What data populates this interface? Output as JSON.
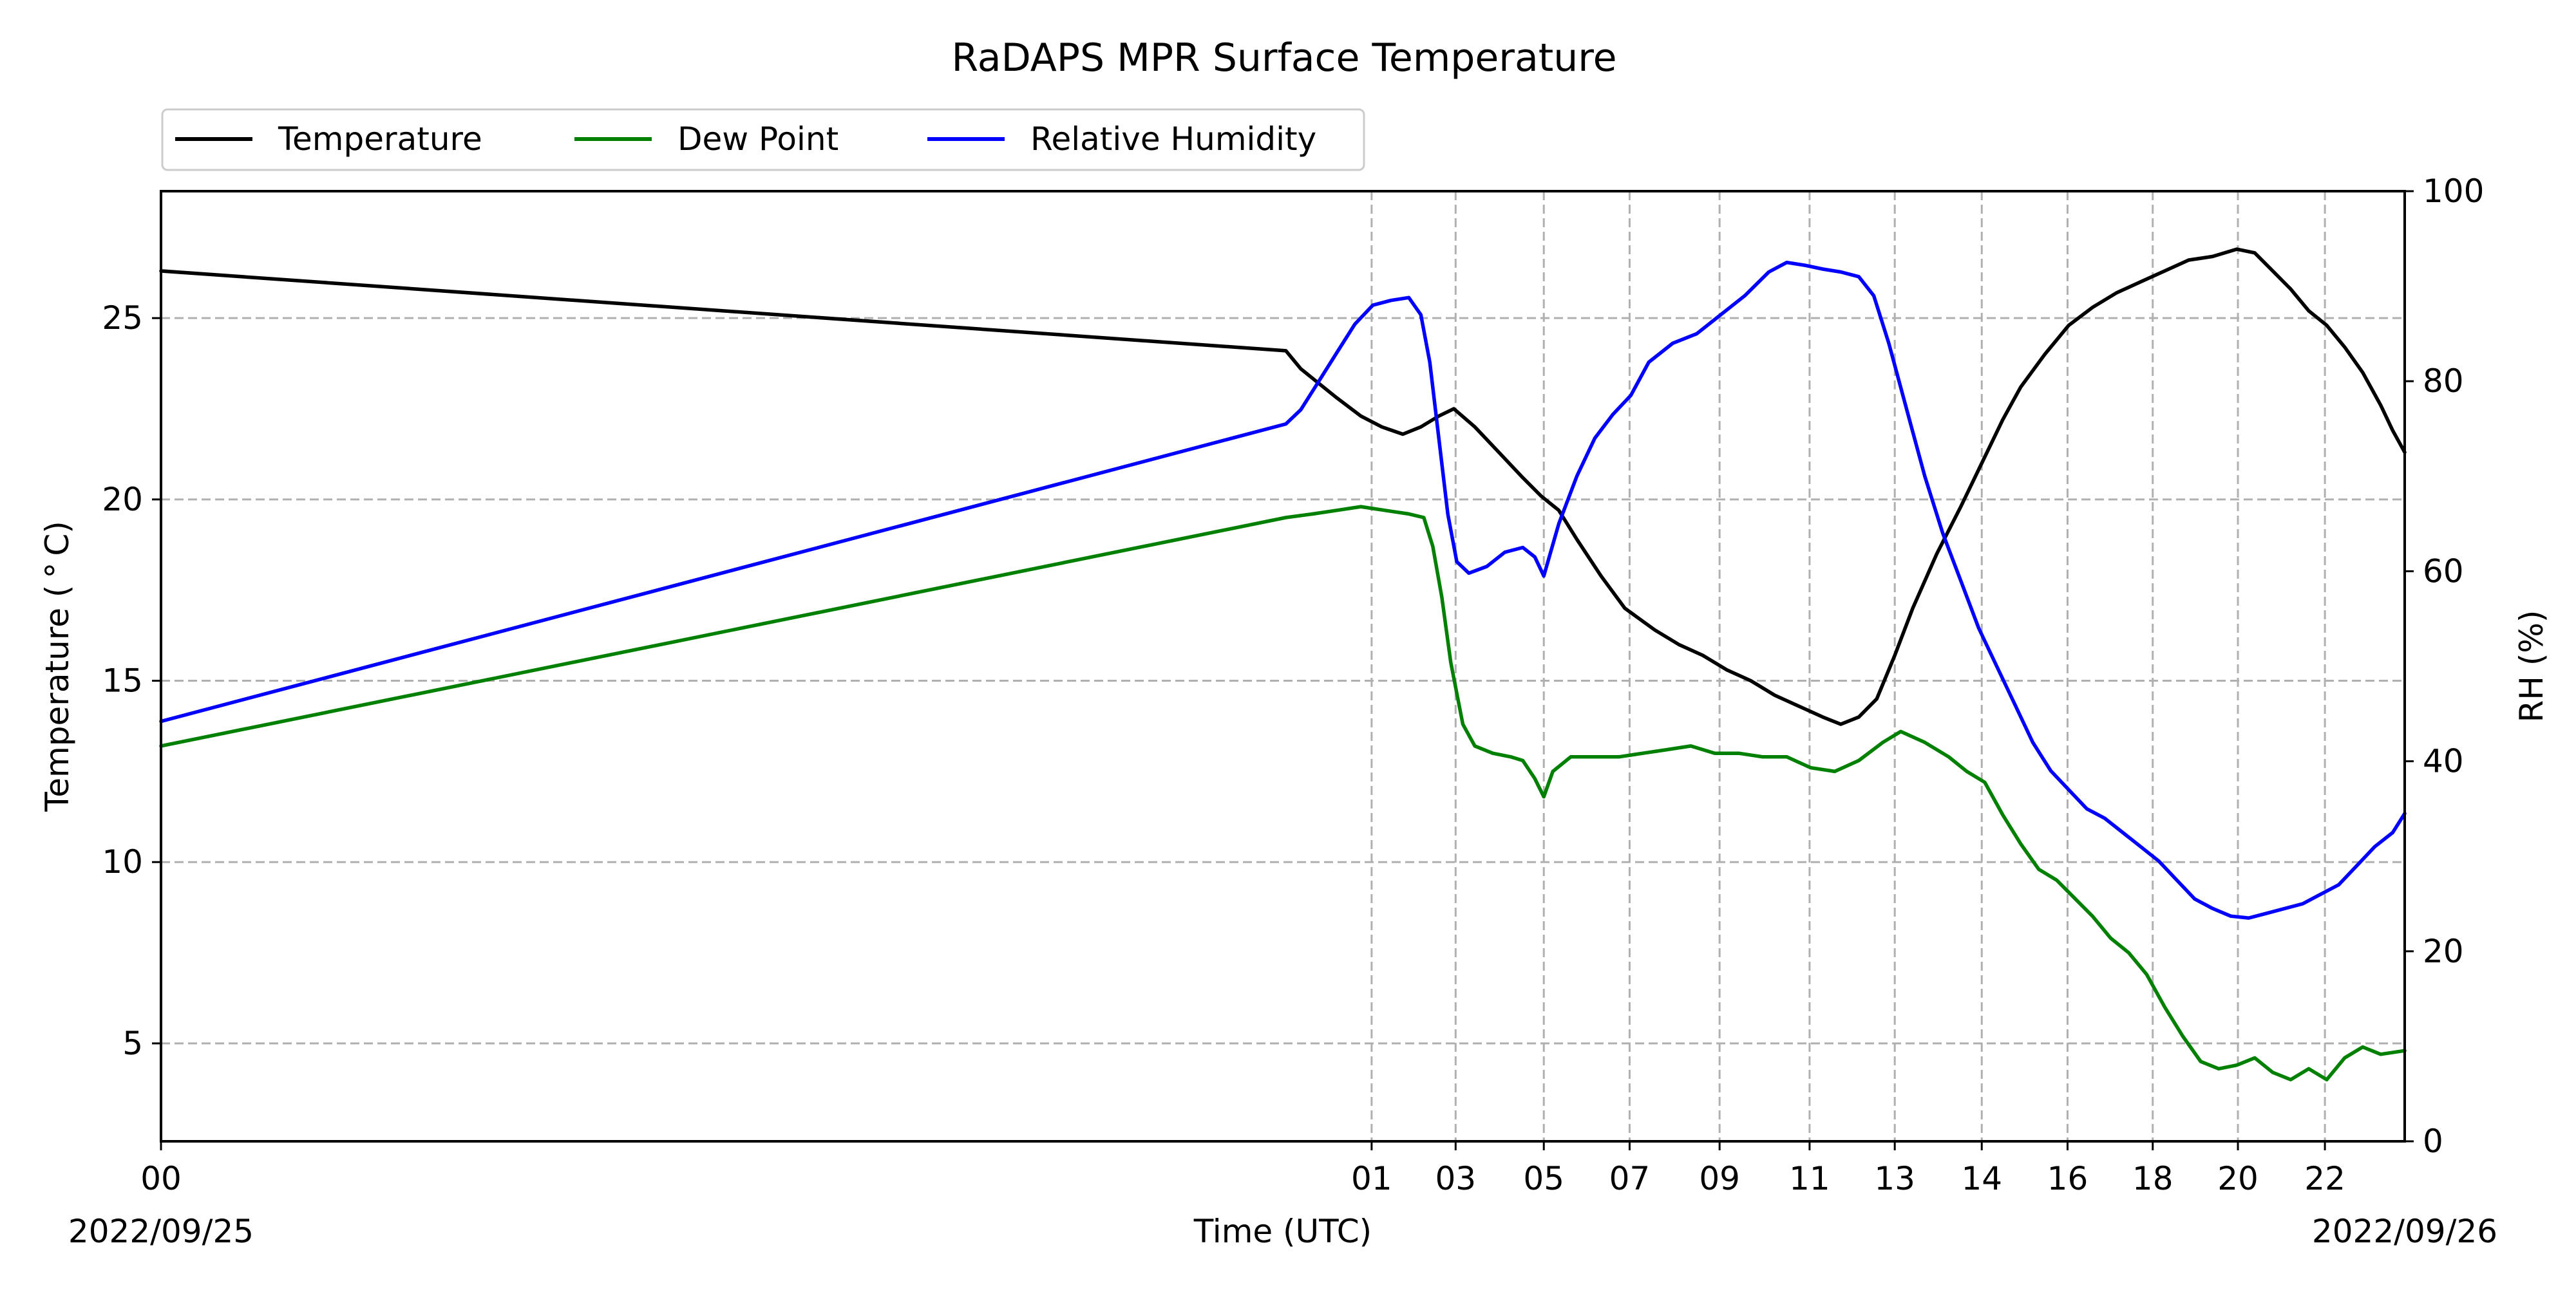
{
  "chart_data": {
    "type": "line",
    "title": "RaDAPS MPR Surface Temperature",
    "xlabel": "Time (UTC)",
    "ylabel": "Temperature ($^\\circ$C)",
    "ylabel_display": "Temperature ( ° C)",
    "y2label": "RH (%)",
    "x_tick_labels": [
      "00",
      "01",
      "03",
      "05",
      "07",
      "09",
      "11",
      "13",
      "14",
      "16",
      "18",
      "20",
      "22"
    ],
    "x_tick_hours": [
      0,
      20.18,
      21.58,
      23.05,
      24.48,
      25.98,
      27.48,
      28.9,
      30.35,
      31.78,
      33.2,
      34.62,
      36.07
    ],
    "x_range_hours": [
      0,
      37.4
    ],
    "date_left": "2022/09/25",
    "date_right": "2022/09/26",
    "ylim": [
      2.3,
      28.5
    ],
    "y_ticks": [
      5,
      10,
      15,
      20,
      25
    ],
    "y2lim": [
      0,
      100
    ],
    "y2_ticks": [
      0,
      20,
      40,
      60,
      80,
      100
    ],
    "grid": true,
    "legend_position": "top-left, above plot",
    "legend": [
      "Temperature",
      "Dew Point",
      "Relative Humidity"
    ],
    "series": [
      {
        "name": "Temperature",
        "color": "#000000",
        "axis": "left",
        "points": [
          [
            0,
            26.3
          ],
          [
            18.75,
            24.1
          ],
          [
            19.0,
            23.6
          ],
          [
            19.3,
            23.2
          ],
          [
            19.6,
            22.8
          ],
          [
            20.0,
            22.3
          ],
          [
            20.35,
            22.0
          ],
          [
            20.7,
            21.8
          ],
          [
            21.0,
            22.0
          ],
          [
            21.3,
            22.3
          ],
          [
            21.55,
            22.5
          ],
          [
            21.9,
            22.0
          ],
          [
            22.3,
            21.3
          ],
          [
            22.7,
            20.6
          ],
          [
            23.0,
            20.1
          ],
          [
            23.3,
            19.7
          ],
          [
            23.6,
            18.9
          ],
          [
            24.0,
            17.9
          ],
          [
            24.4,
            17.0
          ],
          [
            24.9,
            16.4
          ],
          [
            25.3,
            16.0
          ],
          [
            25.7,
            15.7
          ],
          [
            26.1,
            15.3
          ],
          [
            26.5,
            15.0
          ],
          [
            26.9,
            14.6
          ],
          [
            27.3,
            14.3
          ],
          [
            27.7,
            14.0
          ],
          [
            28.0,
            13.8
          ],
          [
            28.3,
            14.0
          ],
          [
            28.6,
            14.5
          ],
          [
            28.9,
            15.7
          ],
          [
            29.2,
            17.0
          ],
          [
            29.6,
            18.5
          ],
          [
            30.0,
            19.8
          ],
          [
            30.35,
            21.0
          ],
          [
            30.7,
            22.2
          ],
          [
            31.0,
            23.1
          ],
          [
            31.4,
            24.0
          ],
          [
            31.8,
            24.8
          ],
          [
            32.2,
            25.3
          ],
          [
            32.6,
            25.7
          ],
          [
            33.0,
            26.0
          ],
          [
            33.4,
            26.3
          ],
          [
            33.8,
            26.6
          ],
          [
            34.2,
            26.7
          ],
          [
            34.6,
            26.9
          ],
          [
            34.9,
            26.8
          ],
          [
            35.2,
            26.3
          ],
          [
            35.5,
            25.8
          ],
          [
            35.8,
            25.2
          ],
          [
            36.1,
            24.8
          ],
          [
            36.4,
            24.2
          ],
          [
            36.7,
            23.5
          ],
          [
            37.0,
            22.6
          ],
          [
            37.2,
            21.9
          ],
          [
            37.4,
            21.3
          ]
        ]
      },
      {
        "name": "Dew Point",
        "color": "#008000",
        "axis": "left",
        "points": [
          [
            0,
            13.2
          ],
          [
            18.75,
            19.5
          ],
          [
            19.2,
            19.6
          ],
          [
            19.6,
            19.7
          ],
          [
            20.0,
            19.8
          ],
          [
            20.4,
            19.7
          ],
          [
            20.8,
            19.6
          ],
          [
            21.05,
            19.5
          ],
          [
            21.2,
            18.7
          ],
          [
            21.35,
            17.3
          ],
          [
            21.5,
            15.5
          ],
          [
            21.7,
            13.8
          ],
          [
            21.9,
            13.2
          ],
          [
            22.2,
            13.0
          ],
          [
            22.5,
            12.9
          ],
          [
            22.7,
            12.8
          ],
          [
            22.9,
            12.3
          ],
          [
            23.05,
            11.8
          ],
          [
            23.2,
            12.5
          ],
          [
            23.5,
            12.9
          ],
          [
            23.9,
            12.9
          ],
          [
            24.3,
            12.9
          ],
          [
            24.7,
            13.0
          ],
          [
            25.1,
            13.1
          ],
          [
            25.5,
            13.2
          ],
          [
            25.9,
            13.0
          ],
          [
            26.3,
            13.0
          ],
          [
            26.7,
            12.9
          ],
          [
            27.1,
            12.9
          ],
          [
            27.5,
            12.6
          ],
          [
            27.9,
            12.5
          ],
          [
            28.3,
            12.8
          ],
          [
            28.7,
            13.3
          ],
          [
            29.0,
            13.6
          ],
          [
            29.4,
            13.3
          ],
          [
            29.8,
            12.9
          ],
          [
            30.1,
            12.5
          ],
          [
            30.4,
            12.2
          ],
          [
            30.7,
            11.3
          ],
          [
            31.0,
            10.5
          ],
          [
            31.3,
            9.8
          ],
          [
            31.6,
            9.5
          ],
          [
            31.9,
            9.0
          ],
          [
            32.2,
            8.5
          ],
          [
            32.5,
            7.9
          ],
          [
            32.8,
            7.5
          ],
          [
            33.1,
            6.9
          ],
          [
            33.4,
            6.0
          ],
          [
            33.7,
            5.2
          ],
          [
            34.0,
            4.5
          ],
          [
            34.3,
            4.3
          ],
          [
            34.6,
            4.4
          ],
          [
            34.9,
            4.6
          ],
          [
            35.2,
            4.2
          ],
          [
            35.5,
            4.0
          ],
          [
            35.8,
            4.3
          ],
          [
            36.1,
            4.0
          ],
          [
            36.4,
            4.6
          ],
          [
            36.7,
            4.9
          ],
          [
            37.0,
            4.7
          ],
          [
            37.4,
            4.8
          ]
        ]
      },
      {
        "name": "Relative Humidity",
        "color": "#0000ff",
        "axis": "right",
        "points": [
          [
            0,
            44.2
          ],
          [
            18.75,
            75.5
          ],
          [
            19.0,
            77.0
          ],
          [
            19.3,
            80.0
          ],
          [
            19.6,
            83.0
          ],
          [
            19.9,
            86.0
          ],
          [
            20.2,
            88.0
          ],
          [
            20.5,
            88.5
          ],
          [
            20.8,
            88.8
          ],
          [
            21.0,
            87.0
          ],
          [
            21.15,
            82.0
          ],
          [
            21.3,
            74.0
          ],
          [
            21.45,
            66.0
          ],
          [
            21.6,
            61.0
          ],
          [
            21.8,
            59.8
          ],
          [
            22.1,
            60.5
          ],
          [
            22.4,
            62.0
          ],
          [
            22.7,
            62.5
          ],
          [
            22.9,
            61.5
          ],
          [
            23.05,
            59.5
          ],
          [
            23.3,
            65.0
          ],
          [
            23.6,
            70.0
          ],
          [
            23.9,
            74.0
          ],
          [
            24.2,
            76.5
          ],
          [
            24.5,
            78.5
          ],
          [
            24.8,
            82.0
          ],
          [
            25.2,
            84.0
          ],
          [
            25.6,
            85.0
          ],
          [
            26.0,
            87.0
          ],
          [
            26.4,
            89.0
          ],
          [
            26.8,
            91.5
          ],
          [
            27.1,
            92.5
          ],
          [
            27.4,
            92.2
          ],
          [
            27.7,
            91.8
          ],
          [
            28.0,
            91.5
          ],
          [
            28.3,
            91.0
          ],
          [
            28.55,
            89.0
          ],
          [
            28.8,
            84.0
          ],
          [
            29.1,
            77.0
          ],
          [
            29.4,
            70.0
          ],
          [
            29.7,
            64.0
          ],
          [
            30.0,
            59.0
          ],
          [
            30.3,
            54.0
          ],
          [
            30.6,
            50.0
          ],
          [
            30.9,
            46.0
          ],
          [
            31.2,
            42.0
          ],
          [
            31.5,
            39.0
          ],
          [
            31.8,
            37.0
          ],
          [
            32.1,
            35.0
          ],
          [
            32.4,
            34.0
          ],
          [
            32.7,
            32.5
          ],
          [
            33.0,
            31.0
          ],
          [
            33.3,
            29.5
          ],
          [
            33.6,
            27.5
          ],
          [
            33.9,
            25.5
          ],
          [
            34.2,
            24.5
          ],
          [
            34.5,
            23.7
          ],
          [
            34.8,
            23.5
          ],
          [
            35.1,
            24.0
          ],
          [
            35.4,
            24.5
          ],
          [
            35.7,
            25.0
          ],
          [
            36.0,
            26.0
          ],
          [
            36.3,
            27.0
          ],
          [
            36.6,
            29.0
          ],
          [
            36.9,
            31.0
          ],
          [
            37.2,
            32.5
          ],
          [
            37.4,
            34.5
          ]
        ]
      }
    ]
  }
}
